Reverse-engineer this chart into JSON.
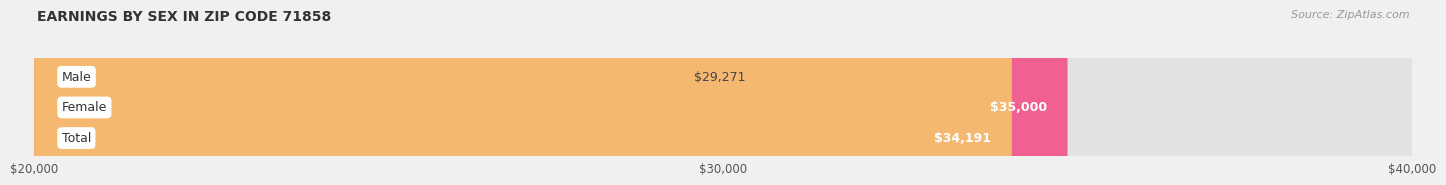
{
  "title": "EARNINGS BY SEX IN ZIP CODE 71858",
  "source": "Source: ZipAtlas.com",
  "categories": [
    "Male",
    "Female",
    "Total"
  ],
  "values": [
    29271,
    35000,
    34191
  ],
  "bar_colors": [
    "#adc8e8",
    "#f06090",
    "#f5b870"
  ],
  "bar_bg_color": "#e2e2e2",
  "value_label_colors": [
    "#444444",
    "#ffffff",
    "#ffffff"
  ],
  "value_label_inside": [
    false,
    true,
    true
  ],
  "value_labels": [
    "$29,271",
    "$35,000",
    "$34,191"
  ],
  "xlim": [
    20000,
    40000
  ],
  "xmin": 20000,
  "xmax": 40000,
  "xticks": [
    20000,
    30000,
    40000
  ],
  "xtick_labels": [
    "$20,000",
    "$30,000",
    "$40,000"
  ],
  "background_color": "#f0f0f0",
  "cat_label_color": "#333333",
  "cat_label_bg": "#ffffff",
  "title_color": "#333333",
  "source_color": "#999999"
}
